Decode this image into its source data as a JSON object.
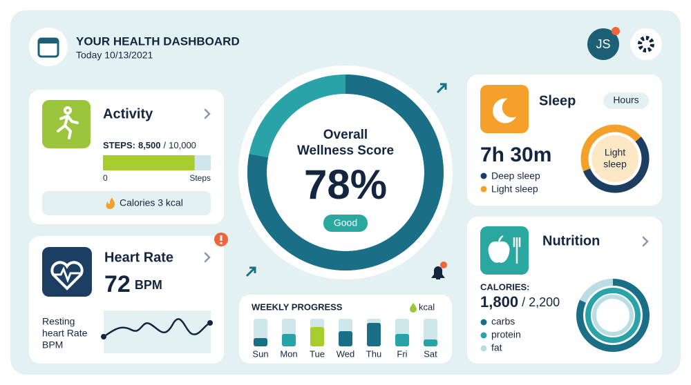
{
  "header": {
    "title": "YOUR HEALTH DASHBOARD",
    "date": "Today 10/13/2021"
  },
  "user": {
    "initials": "JS"
  },
  "activity": {
    "title": "Activity",
    "steps_label": "STEPS:",
    "steps": {
      "value": 8500,
      "label": "8,500"
    },
    "separator": "/",
    "steps_goal": {
      "value": 10000,
      "label": "10,000"
    },
    "scale_start": "0",
    "scale_end": "Steps",
    "calories": "Calories 3 kcal"
  },
  "heart_rate": {
    "title": "Heart Rate",
    "value": "72",
    "unit": "BPM",
    "note_lines": [
      "Resting",
      "heart Rate",
      "BPM"
    ]
  },
  "wellness": {
    "title_lines": [
      "Overall",
      "Wellness Score"
    ],
    "score": {
      "value": 78,
      "label": "78%"
    },
    "status": "Good"
  },
  "weekly": {
    "title": "WEEKLY PROGRESS",
    "unit": "kcal",
    "categories": [
      "Sun",
      "Mon",
      "Tue",
      "Wed",
      "Thu",
      "Fri",
      "Sat"
    ],
    "values": [
      30,
      45,
      70,
      55,
      85,
      45,
      25
    ],
    "ylim": [
      0,
      100
    ]
  },
  "sleep": {
    "title": "Sleep",
    "toggle": "Hours",
    "duration": "7h 30m",
    "legend": [
      "Deep sleep",
      "Light sleep"
    ],
    "center_lines": [
      "Light",
      "sleep"
    ]
  },
  "nutrition": {
    "title": "Nutrition",
    "calories_label": "CALORIES:",
    "calories": {
      "value": 1800,
      "label": "1,800"
    },
    "separator": "/",
    "goal": {
      "value": 2200,
      "label": "2,200"
    },
    "legend": [
      "carbs",
      "protein",
      "fat"
    ]
  }
}
